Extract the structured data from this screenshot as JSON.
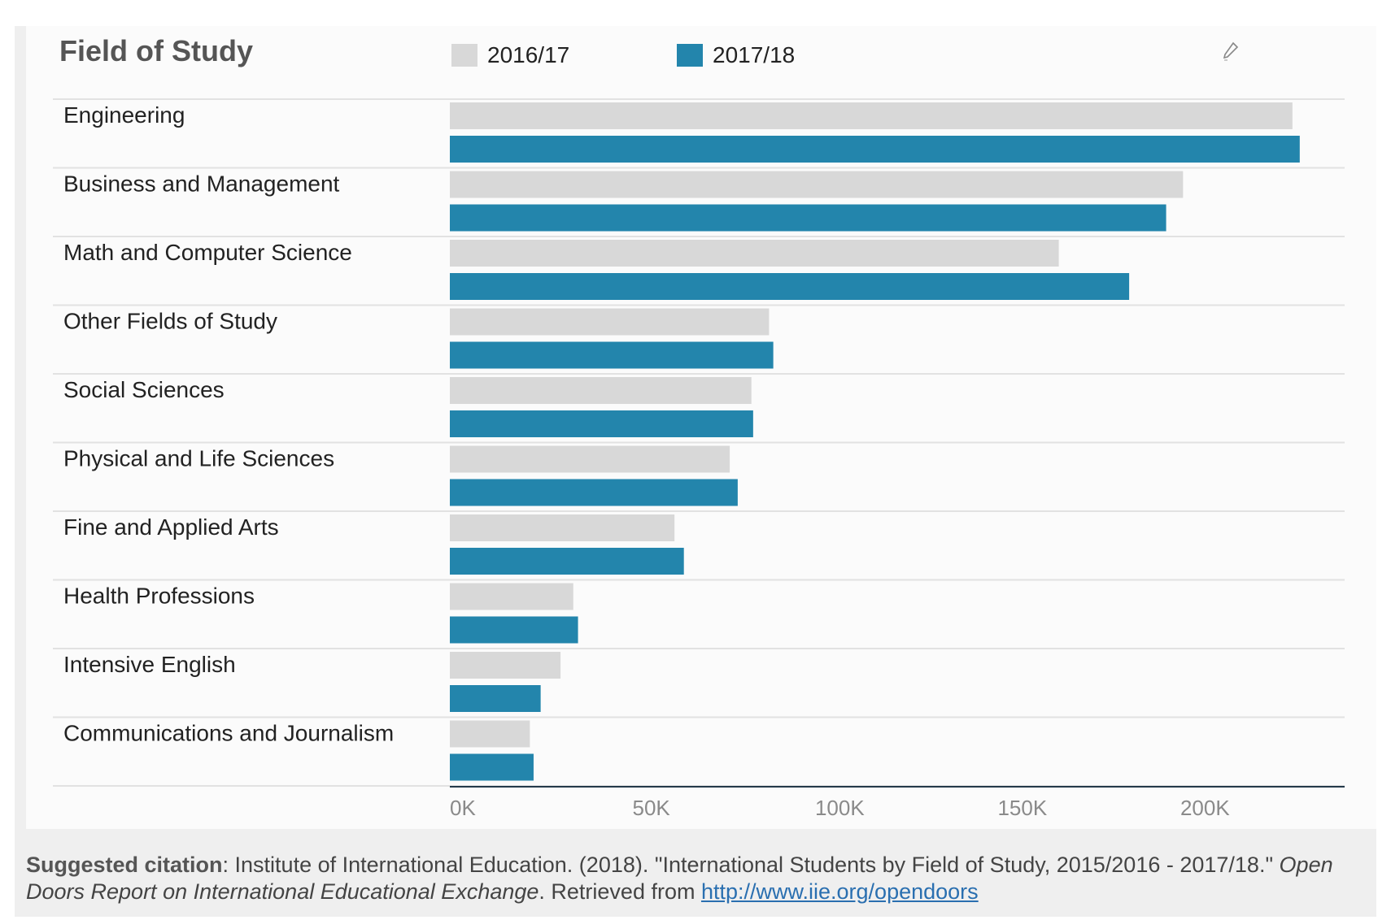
{
  "chart_data": {
    "type": "bar",
    "orientation": "horizontal",
    "title": "Field of Study",
    "categories": [
      "Engineering",
      "Business and Management",
      "Math and Computer Science",
      "Other Fields of Study",
      "Social Sciences",
      "Physical and Life Sciences",
      "Fine and Applied Arts",
      "Health Professions",
      "Intensive English",
      "Communications and Journalism"
    ],
    "series": [
      {
        "name": "2016/17",
        "color": "#d8d8d8",
        "values": [
          230711,
          200754,
          166736,
          87403,
          82565,
          76642,
          61511,
          33797,
          30309,
          21913
        ]
      },
      {
        "name": "2017/18",
        "color": "#2385ac",
        "values": [
          232710,
          196126,
          186003,
          88563,
          83046,
          78821,
          64080,
          35094,
          24865,
          22930
        ]
      }
    ],
    "xlim": [
      0,
      245000
    ],
    "xticks": [
      0,
      50000,
      100000,
      150000,
      200000
    ],
    "xtick_labels": [
      "0K",
      "50K",
      "100K",
      "150K",
      "200K"
    ],
    "grid": true,
    "legend_placement": "top"
  },
  "citation": {
    "label": "Suggested citation",
    "text1": ": Institute of International Education. (2018). \"International Students by Field of Study, 2015/2016 - 2017/18.\" ",
    "italic": "Open Doors Report on International Educational Exchange",
    "text2": ". Retrieved from ",
    "link": "http://www.iie.org/opendoors"
  },
  "icons": {
    "edit": "pencil-icon"
  }
}
